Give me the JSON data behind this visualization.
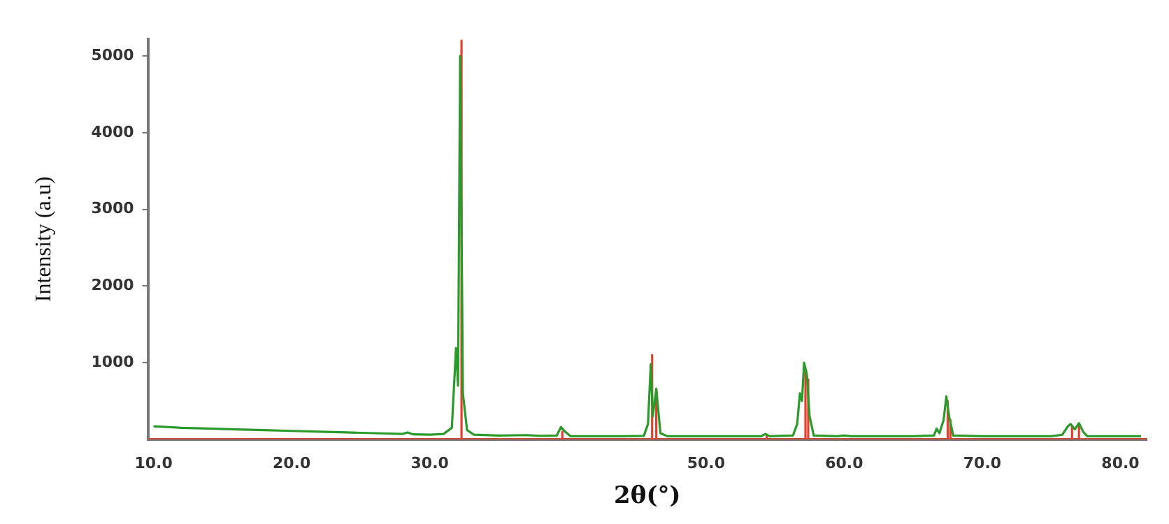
{
  "chart_data": {
    "type": "line",
    "xlabel": "2θ(°)",
    "ylabel": "Intensity (a.u)",
    "xlim": [
      9.6,
      81.9
    ],
    "ylim": [
      0,
      5220
    ],
    "xticks": [
      {
        "value": 10,
        "label": "10.0"
      },
      {
        "value": 20,
        "label": "20.0"
      },
      {
        "value": 30,
        "label": "30.0"
      },
      {
        "value": 50,
        "label": "50.0"
      },
      {
        "value": 60,
        "label": "60.0"
      },
      {
        "value": 70,
        "label": "70.0"
      },
      {
        "value": 80,
        "label": "80.0"
      }
    ],
    "yticks": [
      1000,
      2000,
      3000,
      4000,
      5000
    ],
    "grid": false,
    "legend": false,
    "marker": "none",
    "line_style": "solid",
    "series": [
      {
        "color": "#2a9a2a",
        "x": [
          10,
          12,
          14,
          16,
          18,
          20,
          22,
          24,
          26,
          28,
          28.4,
          28.8,
          30,
          31,
          31.6,
          31.9,
          32.05,
          32.2,
          32.4,
          32.7,
          33.2,
          35,
          37,
          38,
          39.2,
          39.5,
          39.8,
          40.2,
          42,
          44,
          45.5,
          45.8,
          46.0,
          46.15,
          46.4,
          46.7,
          47.2,
          50,
          52,
          54,
          54.3,
          54.6,
          56.3,
          56.6,
          56.8,
          56.95,
          57.1,
          57.3,
          57.5,
          57.8,
          59.5,
          60,
          60.5,
          63,
          65,
          66.5,
          66.7,
          66.9,
          67.2,
          67.4,
          67.6,
          67.9,
          70,
          73,
          75,
          75.8,
          76.2,
          76.4,
          76.7,
          77.0,
          77.3,
          77.6,
          80,
          81.5
        ],
        "values": [
          170,
          150,
          140,
          130,
          120,
          110,
          100,
          90,
          80,
          70,
          90,
          65,
          60,
          70,
          150,
          1190,
          700,
          5000,
          600,
          120,
          60,
          50,
          55,
          45,
          50,
          160,
          100,
          40,
          40,
          40,
          45,
          200,
          980,
          300,
          660,
          80,
          40,
          40,
          40,
          40,
          70,
          40,
          50,
          200,
          600,
          500,
          1000,
          850,
          300,
          50,
          40,
          50,
          40,
          40,
          40,
          50,
          140,
          80,
          250,
          560,
          300,
          50,
          40,
          40,
          40,
          60,
          170,
          200,
          130,
          210,
          100,
          40,
          40,
          40
        ]
      },
      {
        "color": "#e0402c",
        "x": [
          9.6,
          32.3,
          32.3,
          32.3,
          39.6,
          39.6,
          39.6,
          46.1,
          46.1,
          46.1,
          46.4,
          46.4,
          46.4,
          54.4,
          54.4,
          54.4,
          57.2,
          57.2,
          57.2,
          57.4,
          57.4,
          57.4,
          67.5,
          67.5,
          67.5,
          67.7,
          67.7,
          67.7,
          76.5,
          76.5,
          76.5,
          77.0,
          77.0,
          77.0,
          81.9
        ],
        "values": [
          0,
          0,
          5200,
          0,
          0,
          100,
          0,
          0,
          1100,
          0,
          0,
          650,
          0,
          0,
          40,
          0,
          0,
          900,
          0,
          0,
          780,
          0,
          0,
          500,
          0,
          0,
          250,
          0,
          0,
          180,
          0,
          0,
          180,
          0,
          0
        ]
      }
    ]
  }
}
